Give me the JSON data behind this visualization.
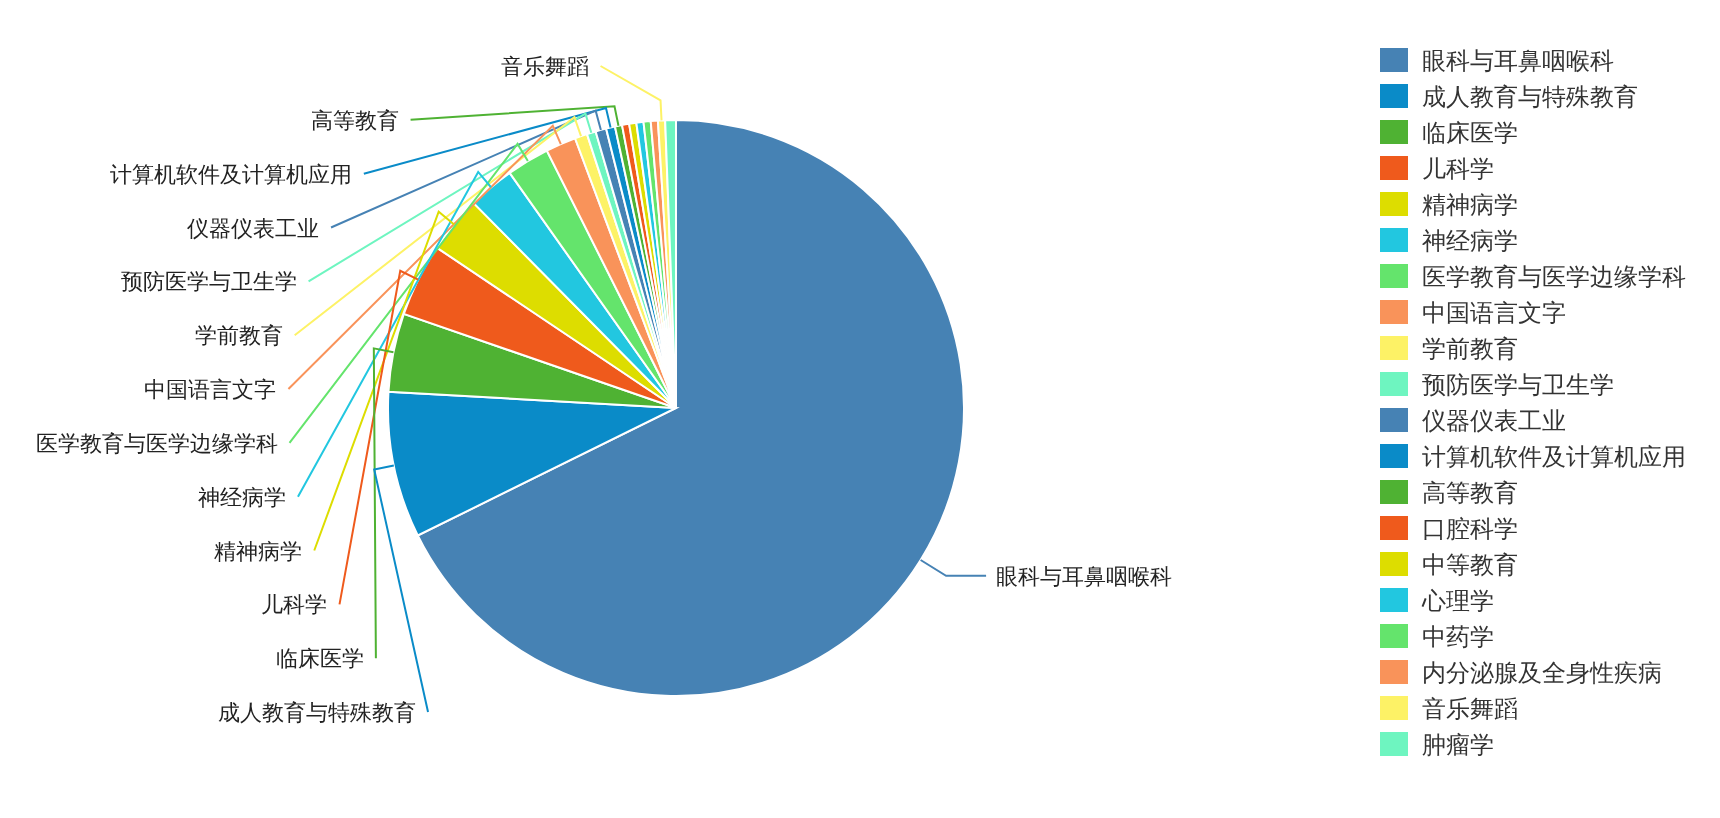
{
  "chart_data": {
    "type": "pie",
    "categories": [
      "眼科与耳鼻咽喉科",
      "成人教育与特殊教育",
      "临床医学",
      "儿科学",
      "精神病学",
      "神经病学",
      "医学教育与医学边缘学科",
      "中国语言文字",
      "学前教育",
      "预防医学与卫生学",
      "仪器仪表工业",
      "计算机软件及计算机应用",
      "高等教育",
      "口腔科学",
      "中等教育",
      "心理学",
      "中药学",
      "内分泌腺及全身性疾病",
      "音乐舞蹈",
      "肿瘤学"
    ],
    "values": [
      67.7,
      8.2,
      4.4,
      4.1,
      3.2,
      2.6,
      2.4,
      1.7,
      0.7,
      0.5,
      0.6,
      0.5,
      0.4,
      0.4,
      0.4,
      0.4,
      0.4,
      0.4,
      0.4,
      0.6
    ],
    "colors": [
      "#4682b4",
      "#0a8bc8",
      "#4fb233",
      "#ef5a1c",
      "#dddd00",
      "#22c7e0",
      "#64e46c",
      "#f9935a",
      "#fdf266",
      "#6ef5c0",
      "#4682b4",
      "#0a8bc8",
      "#4fb233",
      "#ef5a1c",
      "#dddd00",
      "#22c7e0",
      "#64e46c",
      "#f9935a",
      "#fdf266",
      "#6ef5c0"
    ],
    "annotations": [
      {
        "text": "眼科与耳鼻咽喉科",
        "x": "眼科与耳鼻咽喉科"
      },
      {
        "text": "成人教育与特殊教育",
        "x": "成人教育与特殊教育"
      },
      {
        "text": "临床医学",
        "x": "临床医学"
      },
      {
        "text": "儿科学",
        "x": "儿科学"
      },
      {
        "text": "精神病学",
        "x": "精神病学"
      },
      {
        "text": "神经病学",
        "x": "神经病学"
      },
      {
        "text": "医学教育与医学边缘学科",
        "x": "医学教育与医学边缘学科"
      },
      {
        "text": "中国语言文字",
        "x": "中国语言文字"
      },
      {
        "text": "学前教育",
        "x": "学前教育"
      },
      {
        "text": "预防医学与卫生学",
        "x": "预防医学与卫生学"
      },
      {
        "text": "仪器仪表工业",
        "x": "仪器仪表工业"
      },
      {
        "text": "计算机软件及计算机应用",
        "x": "计算机软件及计算机应用"
      },
      {
        "text": "高等教育",
        "x": "高等教育"
      },
      {
        "text": "音乐舞蹈",
        "x": "音乐舞蹈"
      }
    ],
    "legend": "right"
  }
}
